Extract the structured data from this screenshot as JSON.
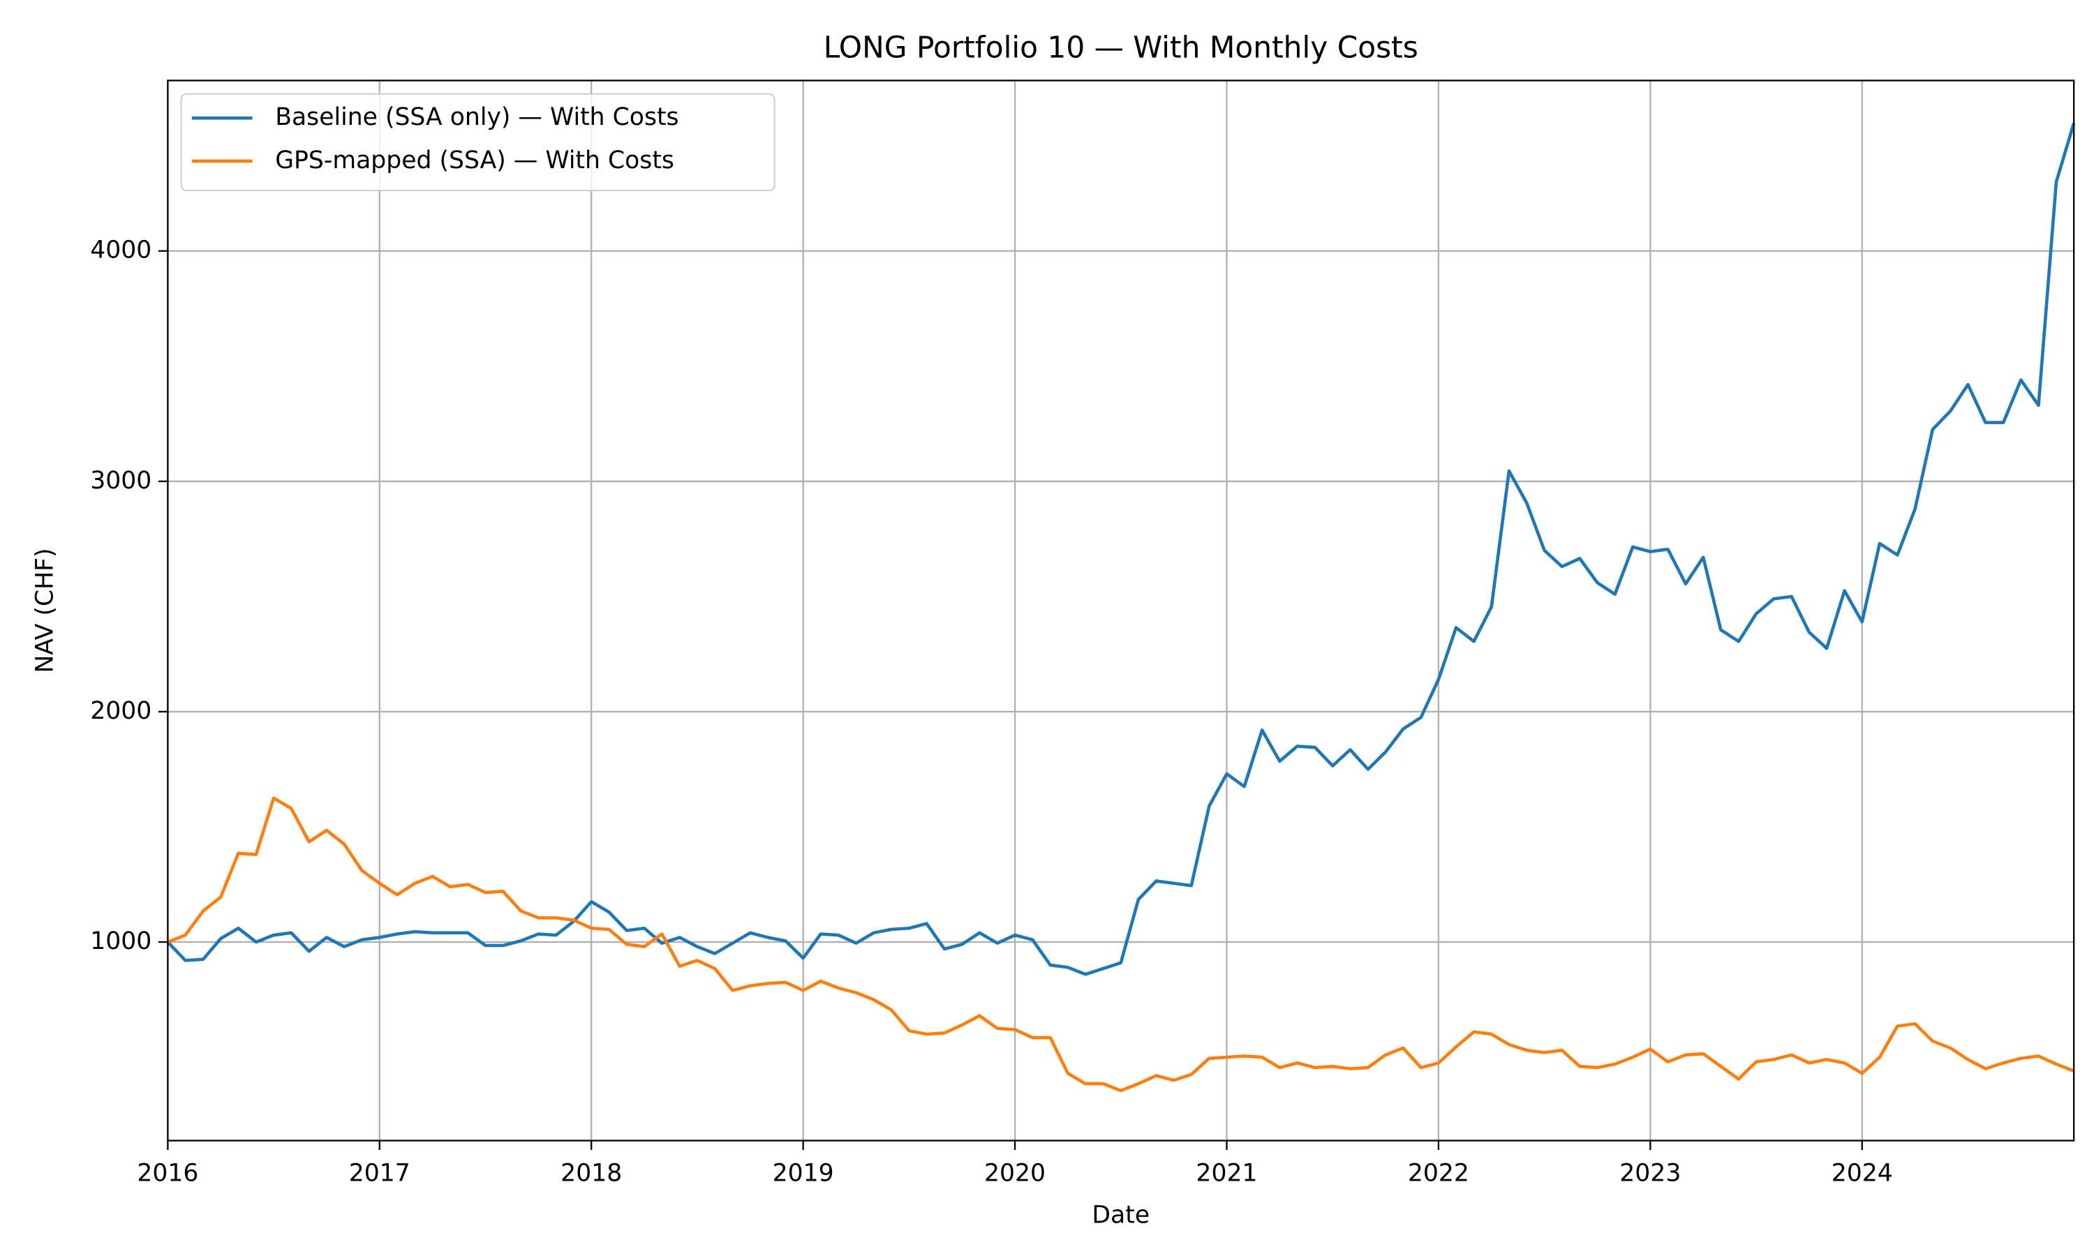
{
  "chart_data": {
    "type": "line",
    "title": "LONG Portfolio 10 — With Monthly Costs",
    "x_label": "Date",
    "y_label": "NAV (CHF)",
    "x": [
      2016,
      2016.083,
      2016.167,
      2016.25,
      2016.333,
      2016.417,
      2016.5,
      2016.583,
      2016.667,
      2016.75,
      2016.833,
      2016.917,
      2017,
      2017.083,
      2017.167,
      2017.25,
      2017.333,
      2017.417,
      2017.5,
      2017.583,
      2017.667,
      2017.75,
      2017.833,
      2017.917,
      2018,
      2018.083,
      2018.167,
      2018.25,
      2018.333,
      2018.417,
      2018.5,
      2018.583,
      2018.667,
      2018.75,
      2018.833,
      2018.917,
      2019,
      2019.083,
      2019.167,
      2019.25,
      2019.333,
      2019.417,
      2019.5,
      2019.583,
      2019.667,
      2019.75,
      2019.833,
      2019.917,
      2020,
      2020.083,
      2020.167,
      2020.25,
      2020.333,
      2020.417,
      2020.5,
      2020.583,
      2020.667,
      2020.75,
      2020.833,
      2020.917,
      2021,
      2021.083,
      2021.167,
      2021.25,
      2021.333,
      2021.417,
      2021.5,
      2021.583,
      2021.667,
      2021.75,
      2021.833,
      2021.917,
      2022,
      2022.083,
      2022.167,
      2022.25,
      2022.333,
      2022.417,
      2022.5,
      2022.583,
      2022.667,
      2022.75,
      2022.833,
      2022.917,
      2023,
      2023.083,
      2023.167,
      2023.25,
      2023.333,
      2023.417,
      2023.5,
      2023.583,
      2023.667,
      2023.75,
      2023.833,
      2023.917,
      2024,
      2024.083,
      2024.167,
      2024.25,
      2024.333,
      2024.417,
      2024.5,
      2024.583,
      2024.667,
      2024.75,
      2024.833,
      2024.917,
      2025
    ],
    "series": [
      {
        "name": "Baseline (SSA only) — With Costs",
        "color": "#1f77b4",
        "values": [
          1000,
          920,
          925,
          1015,
          1060,
          1000,
          1030,
          1040,
          960,
          1020,
          980,
          1010,
          1020,
          1035,
          1045,
          1040,
          1040,
          1040,
          985,
          985,
          1005,
          1035,
          1030,
          1090,
          1175,
          1130,
          1050,
          1060,
          995,
          1020,
          980,
          950,
          995,
          1040,
          1020,
          1005,
          930,
          1035,
          1030,
          995,
          1040,
          1055,
          1060,
          1080,
          970,
          990,
          1040,
          995,
          1030,
          1010,
          900,
          890,
          860,
          885,
          910,
          1185,
          1265,
          1255,
          1245,
          1590,
          1730,
          1675,
          1920,
          1785,
          1850,
          1845,
          1765,
          1835,
          1750,
          1825,
          1925,
          1975,
          2140,
          2365,
          2305,
          2455,
          3045,
          2905,
          2700,
          2630,
          2665,
          2560,
          2510,
          2715,
          2695,
          2705,
          2555,
          2670,
          2355,
          2305,
          2425,
          2490,
          2500,
          2345,
          2275,
          2525,
          2390,
          2730,
          2680,
          2880,
          3225,
          3305,
          3420,
          3255,
          3255,
          3440,
          3330,
          4300,
          4555
        ]
      },
      {
        "name": "GPS-mapped (SSA) — With Costs",
        "color": "#ff7f0e",
        "values": [
          1000,
          1030,
          1135,
          1195,
          1385,
          1380,
          1625,
          1580,
          1435,
          1485,
          1425,
          1310,
          1255,
          1205,
          1255,
          1285,
          1240,
          1250,
          1215,
          1220,
          1135,
          1105,
          1105,
          1095,
          1060,
          1055,
          990,
          980,
          1035,
          895,
          920,
          885,
          790,
          810,
          820,
          825,
          790,
          830,
          800,
          780,
          750,
          705,
          615,
          600,
          605,
          640,
          680,
          625,
          620,
          585,
          585,
          430,
          385,
          385,
          355,
          385,
          420,
          400,
          425,
          495,
          500,
          505,
          500,
          455,
          475,
          455,
          460,
          450,
          455,
          510,
          540,
          455,
          475,
          545,
          610,
          600,
          555,
          530,
          520,
          530,
          460,
          455,
          470,
          500,
          535,
          480,
          510,
          515,
          460,
          405,
          480,
          490,
          510,
          475,
          490,
          475,
          430,
          500,
          635,
          645,
          570,
          540,
          490,
          450,
          475,
          495,
          505,
          470,
          440
        ]
      }
    ],
    "xlim": [
      2016,
      2025
    ],
    "xticks": [
      2016,
      2017,
      2018,
      2019,
      2020,
      2021,
      2022,
      2023,
      2024
    ],
    "ylim": [
      138,
      4740
    ],
    "yticks": [
      1000,
      2000,
      3000,
      4000
    ],
    "grid": true,
    "legend": "upper left"
  }
}
